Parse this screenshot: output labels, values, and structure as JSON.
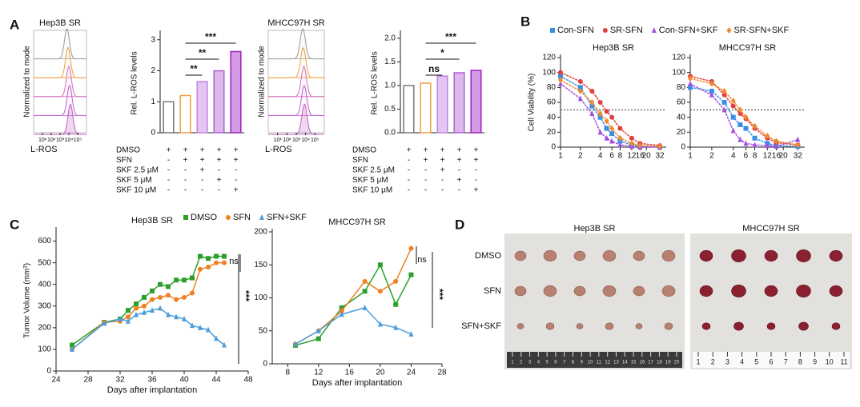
{
  "panels": [
    "A",
    "B",
    "C",
    "D"
  ],
  "chart_data": [
    {
      "type": "density",
      "title": "Hep3B SR",
      "ylabel": "Normalized to mode",
      "xlabel": "L-ROS",
      "log_scale": true,
      "xlim": [
        1,
        1000000
      ],
      "xticks": [
        {
          "value": 10,
          "label": "10¹"
        },
        {
          "value": 100,
          "label": "10²"
        },
        {
          "value": 1000,
          "label": "10³"
        },
        {
          "value": 10000,
          "label": "10⁴"
        },
        {
          "value": 100000,
          "label": "10⁵"
        }
      ],
      "series": [
        {
          "color": "#999999",
          "peak": 6000
        },
        {
          "color": "#f0a040",
          "peak": 8000
        },
        {
          "color": "#d070c0",
          "peak": 10000
        },
        {
          "color": "#c060d0",
          "peak": 12000
        },
        {
          "color": "#c060c0",
          "peak": 15000
        }
      ]
    },
    {
      "type": "bar",
      "ylabel": "Rel. L-ROS levels",
      "categories": [
        null,
        null,
        null,
        null,
        null
      ],
      "values": [
        1.0,
        1.2,
        1.65,
        2.0,
        2.62
      ],
      "colors": [
        "#777777",
        "#f0a040",
        "#c080e0",
        "#b060d0",
        "#a020c0"
      ],
      "ylim": [
        0,
        3.2
      ],
      "yticks": [
        0,
        1,
        2,
        3
      ],
      "significance": [
        "**",
        "**",
        "***"
      ],
      "treatments": [
        {
          "label": "DMSO",
          "signs": [
            "+",
            "+",
            "+",
            "+",
            "+"
          ]
        },
        {
          "label": "SFN",
          "signs": [
            "-",
            "+",
            "+",
            "+",
            "+"
          ]
        },
        {
          "label": "SKF 2.5 μM",
          "signs": [
            "-",
            "-",
            "+",
            "-",
            "-"
          ]
        },
        {
          "label": "SKF 5 μM",
          "signs": [
            "-",
            "-",
            "-",
            "+",
            "-"
          ]
        },
        {
          "label": "SKF 10 μM",
          "signs": [
            "-",
            "-",
            "-",
            "-",
            "+"
          ]
        }
      ]
    },
    {
      "type": "density",
      "title": "MHCC97H SR",
      "ylabel": "Normalized to mode",
      "xlabel": "L-ROS",
      "log_scale": true,
      "xlim": [
        1,
        1000000
      ],
      "xticks": [
        {
          "value": 10,
          "label": "10¹"
        },
        {
          "value": 100,
          "label": "10²"
        },
        {
          "value": 1000,
          "label": "10³"
        },
        {
          "value": 10000,
          "label": "10⁴"
        },
        {
          "value": 100000,
          "label": "10⁵"
        }
      ],
      "series": [
        {
          "color": "#999999",
          "peak": 5000
        },
        {
          "color": "#f0a040",
          "peak": 5500
        },
        {
          "color": "#d070c0",
          "peak": 6500
        },
        {
          "color": "#c060d0",
          "peak": 7000
        },
        {
          "color": "#c060c0",
          "peak": 7500
        }
      ]
    },
    {
      "type": "bar",
      "ylabel": "Rel. L-ROS levels",
      "categories": [
        null,
        null,
        null,
        null,
        null
      ],
      "values": [
        1.0,
        1.05,
        1.2,
        1.27,
        1.32
      ],
      "colors": [
        "#777777",
        "#f0a040",
        "#c080e0",
        "#b060d0",
        "#a020c0"
      ],
      "ylim": [
        0,
        2.1
      ],
      "yticks": [
        {
          "value": 0,
          "label": "0.0"
        },
        0.5,
        {
          "value": 1,
          "label": "1.0"
        },
        1.5,
        {
          "value": 2,
          "label": "2.0"
        }
      ],
      "significance": [
        "ns",
        "*",
        "***"
      ],
      "treatments": [
        {
          "label": "DMSO",
          "signs": [
            "+",
            "+",
            "+",
            "+",
            "+"
          ]
        },
        {
          "label": "SFN",
          "signs": [
            "-",
            "+",
            "+",
            "+",
            "+"
          ]
        },
        {
          "label": "SKF 2.5 μM",
          "signs": [
            "-",
            "-",
            "+",
            "-",
            "-"
          ]
        },
        {
          "label": "SKF 5 μM",
          "signs": [
            "-",
            "-",
            "-",
            "+",
            "-"
          ]
        },
        {
          "label": "SKF 10 μM",
          "signs": [
            "-",
            "-",
            "-",
            "-",
            "+"
          ]
        }
      ]
    },
    {
      "type": "line",
      "title": "Hep3B SR",
      "ylabel": "Cell Viability (%)",
      "log_base": 2,
      "x": [
        1,
        2,
        3,
        4,
        5,
        6,
        8,
        12,
        16,
        32
      ],
      "series": [
        {
          "name": "Con-SFN",
          "color": "#3a8ee6",
          "marker": "square",
          "values": [
            95,
            80,
            55,
            40,
            25,
            18,
            8,
            3,
            1,
            0
          ]
        },
        {
          "name": "SR-SFN",
          "color": "#e04040",
          "marker": "circle",
          "values": [
            100,
            88,
            75,
            60,
            48,
            40,
            25,
            12,
            5,
            2
          ]
        },
        {
          "name": "Con-SFN+SKF",
          "color": "#a050e0",
          "marker": "triangle",
          "values": [
            85,
            65,
            45,
            20,
            12,
            8,
            3,
            1,
            0,
            0
          ]
        },
        {
          "name": "SR-SFN+SKF",
          "color": "#f08a30",
          "marker": "diamond",
          "values": [
            90,
            75,
            60,
            45,
            35,
            25,
            12,
            5,
            2,
            1
          ]
        }
      ],
      "xlim": [
        1,
        40
      ],
      "xticks": [
        1,
        2,
        4,
        6,
        8,
        12,
        16,
        20,
        32
      ],
      "ylim": [
        0,
        120
      ],
      "yticks": [
        0,
        20,
        40,
        60,
        80,
        100,
        120
      ],
      "reference_line": 50
    },
    {
      "type": "line",
      "title": "MHCC97H SR",
      "log_base": 2,
      "x": [
        1,
        2,
        3,
        4,
        5,
        6,
        8,
        12,
        16,
        32
      ],
      "series": [
        {
          "color": "#3a8ee6",
          "marker": "square",
          "values": [
            80,
            75,
            60,
            40,
            30,
            25,
            12,
            5,
            2,
            1
          ]
        },
        {
          "color": "#e04040",
          "marker": "circle",
          "values": [
            95,
            88,
            70,
            55,
            45,
            38,
            25,
            12,
            6,
            3
          ]
        },
        {
          "color": "#a050e0",
          "marker": "triangle",
          "values": [
            85,
            70,
            50,
            22,
            10,
            5,
            3,
            2,
            1,
            10
          ]
        },
        {
          "color": "#f08a30",
          "marker": "diamond",
          "values": [
            92,
            85,
            75,
            62,
            50,
            40,
            28,
            15,
            8,
            3
          ]
        }
      ],
      "xlim": [
        1,
        40
      ],
      "xticks": [
        1,
        2,
        4,
        6,
        8,
        12,
        16,
        20,
        32
      ],
      "ylim": [
        0,
        120
      ],
      "yticks": [
        0,
        20,
        40,
        60,
        80,
        100,
        120
      ],
      "reference_line": 50
    },
    {
      "type": "line",
      "title": "Hep3B SR",
      "ylabel": "Tumor Volume (mm³)",
      "xlabel": "Days after implantation",
      "x": [
        26,
        30,
        32,
        33,
        34,
        35,
        36,
        37,
        38,
        39,
        40,
        41,
        42,
        43,
        44,
        45
      ],
      "series": [
        {
          "name": "DMSO",
          "color": "#2ca02c",
          "marker": "square",
          "values": [
            120,
            225,
            240,
            280,
            310,
            340,
            370,
            400,
            390,
            420,
            420,
            430,
            530,
            520,
            530,
            530
          ]
        },
        {
          "name": "SFN",
          "color": "#f08020",
          "marker": "circle",
          "values": [
            100,
            225,
            230,
            250,
            290,
            300,
            330,
            340,
            350,
            330,
            340,
            360,
            470,
            480,
            500,
            500
          ]
        },
        {
          "name": "SFN+SKF",
          "color": "#4a9ede",
          "marker": "triangle",
          "values": [
            100,
            220,
            240,
            230,
            260,
            270,
            280,
            290,
            260,
            250,
            240,
            210,
            200,
            190,
            150,
            120
          ]
        }
      ],
      "xlim": [
        24,
        48
      ],
      "xticks": [
        24,
        28,
        32,
        36,
        40,
        44,
        48
      ],
      "ylim": [
        0,
        650
      ],
      "yticks": [
        0,
        100,
        200,
        300,
        400,
        500,
        600
      ],
      "annotations": [
        "ns",
        "***"
      ]
    },
    {
      "type": "line",
      "title": "MHCC97H SR",
      "xlabel": "Days after implantation",
      "x": [
        9,
        12,
        15,
        18,
        20,
        22,
        24
      ],
      "series": [
        {
          "color": "#2ca02c",
          "marker": "square",
          "values": [
            28,
            38,
            85,
            110,
            150,
            90,
            135
          ]
        },
        {
          "color": "#f08020",
          "marker": "circle",
          "values": [
            30,
            50,
            80,
            125,
            110,
            125,
            175
          ]
        },
        {
          "color": "#4a9ede",
          "marker": "triangle",
          "values": [
            30,
            50,
            75,
            85,
            60,
            55,
            45
          ]
        }
      ],
      "xlim": [
        6,
        28
      ],
      "xticks": [
        8,
        12,
        16,
        20,
        24,
        28
      ],
      "ylim": [
        0,
        200
      ],
      "yticks": [
        0,
        50,
        100,
        150,
        200
      ],
      "annotations": [
        "ns",
        "***"
      ]
    }
  ],
  "photos": {
    "titles": [
      "Hep3B SR",
      "MHCC97H SR"
    ],
    "rows": [
      "DMSO",
      "SFN",
      "SFN+SKF"
    ],
    "rulers": [
      [
        1,
        2,
        3,
        4,
        5,
        6,
        7,
        8,
        9,
        10,
        11,
        12,
        13,
        14,
        15,
        16,
        17,
        18,
        19,
        20
      ],
      [
        1,
        2,
        3,
        4,
        5,
        6,
        7,
        8,
        9,
        10,
        11
      ]
    ]
  }
}
